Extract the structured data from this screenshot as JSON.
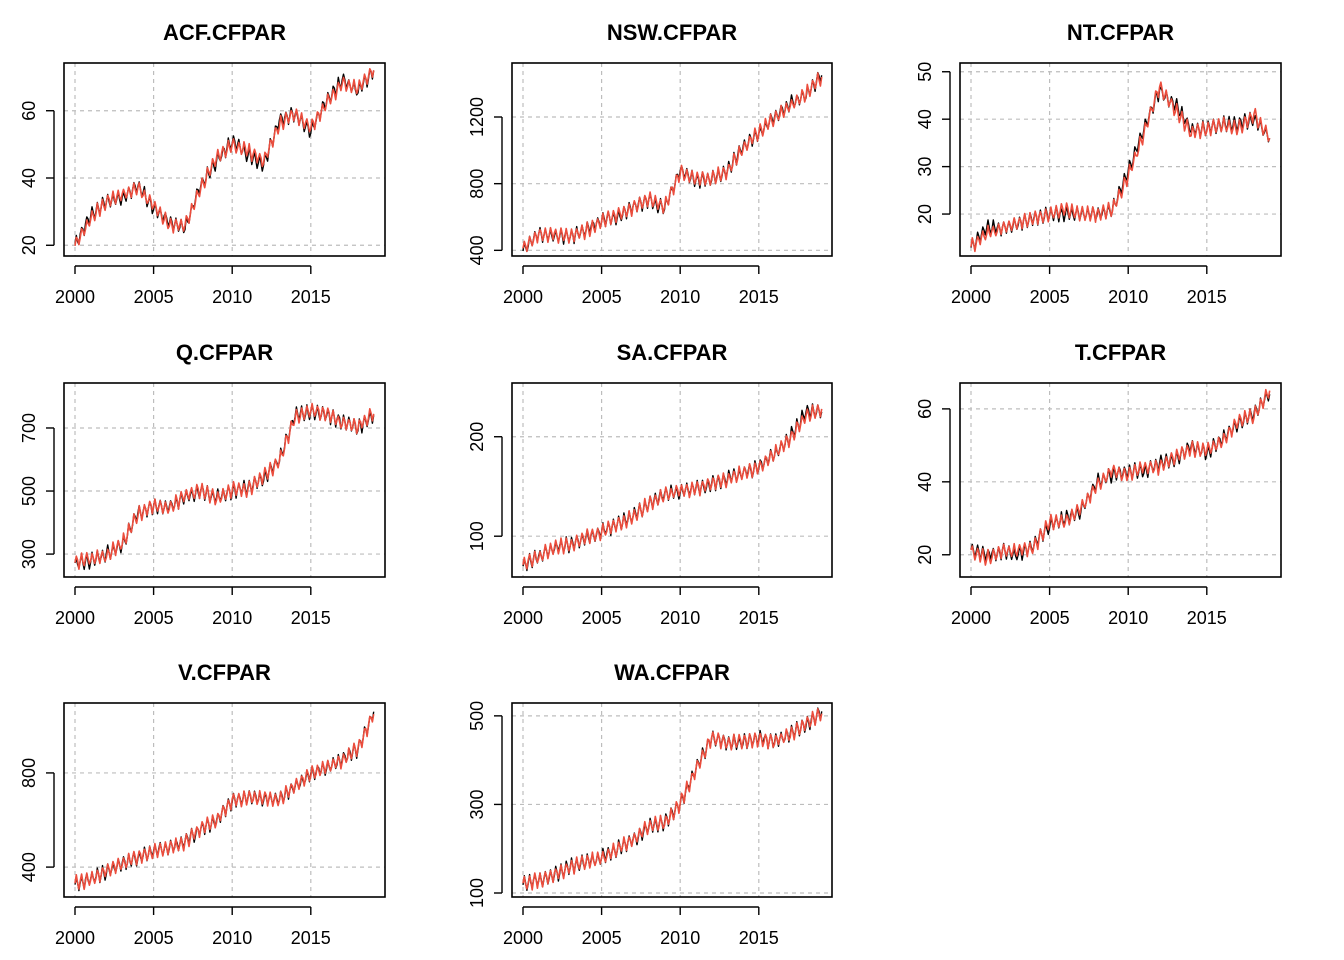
{
  "colors": {
    "actual": "#000000",
    "fitted": "#ec4d3d",
    "grid": "#bdbdbd"
  },
  "chart_data": [
    {
      "type": "line",
      "title": "ACF.CFPAR",
      "xlabel": "",
      "ylabel": "",
      "xlim": [
        2000,
        2019
      ],
      "ylim": [
        18,
        73
      ],
      "grid": true,
      "xticks": [
        2000,
        2005,
        2010,
        2015
      ],
      "yticks": [
        20,
        40,
        60
      ],
      "series": [
        {
          "x": [
            2000,
            2001,
            2002,
            2003,
            2004,
            2005,
            2006,
            2007,
            2008,
            2009,
            2010,
            2011,
            2012,
            2013,
            2014,
            2015,
            2016,
            2017,
            2018,
            2019
          ],
          "values": [
            20,
            29,
            33,
            34,
            38,
            31,
            27,
            25,
            38,
            45,
            51,
            47,
            44,
            57,
            59,
            54,
            63,
            69,
            66,
            72
          ]
        },
        {
          "x": [
            2000,
            2001,
            2002,
            2003,
            2004,
            2005,
            2006,
            2007,
            2008,
            2009,
            2010,
            2011,
            2012,
            2013,
            2014,
            2015,
            2016,
            2017,
            2018,
            2019
          ],
          "values": [
            20,
            28,
            33,
            35,
            37,
            32,
            26,
            26,
            37,
            46,
            50,
            48,
            45,
            56,
            59,
            55,
            62,
            68,
            67,
            72
          ]
        }
      ]
    },
    {
      "type": "line",
      "title": "NSW.CFPAR",
      "xlabel": "",
      "ylabel": "",
      "xlim": [
        2000,
        2019
      ],
      "ylim": [
        390,
        1500
      ],
      "grid": true,
      "xticks": [
        2000,
        2005,
        2010,
        2015
      ],
      "yticks": [
        400,
        800,
        1200
      ],
      "series": [
        {
          "x": [
            2000,
            2001,
            2002,
            2003,
            2004,
            2005,
            2006,
            2007,
            2008,
            2009,
            2010,
            2011,
            2012,
            2013,
            2014,
            2015,
            2016,
            2017,
            2018,
            2019
          ],
          "values": [
            400,
            500,
            490,
            480,
            520,
            580,
            600,
            660,
            700,
            650,
            880,
            820,
            830,
            880,
            1020,
            1100,
            1200,
            1280,
            1330,
            1450
          ]
        },
        {
          "x": [
            2000,
            2001,
            2002,
            2003,
            2004,
            2005,
            2006,
            2007,
            2008,
            2009,
            2010,
            2011,
            2012,
            2013,
            2014,
            2015,
            2016,
            2017,
            2018,
            2019
          ],
          "values": [
            405,
            495,
            495,
            485,
            515,
            575,
            610,
            655,
            705,
            660,
            870,
            825,
            835,
            875,
            1010,
            1110,
            1195,
            1270,
            1340,
            1440
          ]
        }
      ]
    },
    {
      "type": "line",
      "title": "NT.CFPAR",
      "xlabel": "",
      "ylabel": "",
      "xlim": [
        2000,
        2019
      ],
      "ylim": [
        12,
        51
      ],
      "grid": true,
      "xticks": [
        2000,
        2005,
        2010,
        2015
      ],
      "yticks": [
        20,
        30,
        40,
        50
      ],
      "series": [
        {
          "x": [
            2000,
            2001,
            2002,
            2003,
            2004,
            2005,
            2006,
            2007,
            2008,
            2009,
            2010,
            2011,
            2012,
            2013,
            2014,
            2015,
            2016,
            2017,
            2018,
            2019
          ],
          "values": [
            13,
            17,
            17,
            18,
            19,
            20,
            20,
            20,
            20,
            21,
            29,
            38,
            46,
            43,
            38,
            38,
            39,
            39,
            40,
            36
          ]
        },
        {
          "x": [
            2000,
            2001,
            2002,
            2003,
            2004,
            2005,
            2006,
            2007,
            2008,
            2009,
            2010,
            2011,
            2012,
            2013,
            2014,
            2015,
            2016,
            2017,
            2018,
            2019
          ],
          "values": [
            13,
            16,
            17,
            18,
            19,
            20,
            21,
            20,
            20,
            21,
            28,
            37,
            47,
            42,
            37,
            38,
            39,
            38,
            41,
            36
          ]
        }
      ]
    },
    {
      "type": "line",
      "title": "Q.CFPAR",
      "xlabel": "",
      "ylabel": "",
      "xlim": [
        2000,
        2019
      ],
      "ylim": [
        240,
        830
      ],
      "grid": true,
      "xticks": [
        2000,
        2005,
        2010,
        2015
      ],
      "yticks": [
        300,
        500,
        700
      ],
      "series": [
        {
          "x": [
            2000,
            2001,
            2002,
            2003,
            2004,
            2005,
            2006,
            2007,
            2008,
            2009,
            2010,
            2011,
            2012,
            2013,
            2014,
            2015,
            2016,
            2017,
            2018,
            2019
          ],
          "values": [
            270,
            280,
            300,
            330,
            430,
            450,
            450,
            480,
            500,
            480,
            500,
            510,
            540,
            600,
            740,
            750,
            740,
            720,
            700,
            740
          ]
        },
        {
          "x": [
            2000,
            2001,
            2002,
            2003,
            2004,
            2005,
            2006,
            2007,
            2008,
            2009,
            2010,
            2011,
            2012,
            2013,
            2014,
            2015,
            2016,
            2017,
            2018,
            2019
          ],
          "values": [
            275,
            285,
            295,
            335,
            425,
            455,
            445,
            485,
            505,
            475,
            505,
            505,
            545,
            595,
            735,
            755,
            745,
            715,
            705,
            745
          ]
        }
      ]
    },
    {
      "type": "line",
      "title": "SA.CFPAR",
      "xlabel": "",
      "ylabel": "",
      "xlim": [
        2000,
        2019
      ],
      "ylim": [
        63,
        250
      ],
      "grid": true,
      "xticks": [
        2000,
        2005,
        2010,
        2015
      ],
      "yticks": [
        100,
        200
      ],
      "series": [
        {
          "x": [
            2000,
            2001,
            2002,
            2003,
            2004,
            2005,
            2006,
            2007,
            2008,
            2009,
            2010,
            2011,
            2012,
            2013,
            2014,
            2015,
            2016,
            2017,
            2018,
            2019
          ],
          "values": [
            70,
            80,
            88,
            92,
            98,
            105,
            112,
            120,
            132,
            142,
            145,
            148,
            152,
            158,
            163,
            170,
            182,
            200,
            225,
            225
          ]
        },
        {
          "x": [
            2000,
            2001,
            2002,
            2003,
            2004,
            2005,
            2006,
            2007,
            2008,
            2009,
            2010,
            2011,
            2012,
            2013,
            2014,
            2015,
            2016,
            2017,
            2018,
            2019
          ],
          "values": [
            72,
            79,
            89,
            91,
            99,
            104,
            113,
            119,
            133,
            141,
            146,
            147,
            153,
            157,
            164,
            169,
            183,
            198,
            222,
            228
          ]
        }
      ]
    },
    {
      "type": "line",
      "title": "T.CFPAR",
      "xlabel": "",
      "ylabel": "",
      "xlim": [
        2000,
        2019
      ],
      "ylim": [
        15,
        66
      ],
      "grid": true,
      "xticks": [
        2000,
        2005,
        2010,
        2015
      ],
      "yticks": [
        20,
        40,
        60
      ],
      "series": [
        {
          "x": [
            2000,
            2001,
            2002,
            2003,
            2004,
            2005,
            2006,
            2007,
            2008,
            2009,
            2010,
            2011,
            2012,
            2013,
            2014,
            2015,
            2016,
            2017,
            2018,
            2019
          ],
          "values": [
            21,
            20,
            21,
            20,
            23,
            28,
            30,
            32,
            40,
            42,
            43,
            43,
            45,
            46,
            50,
            48,
            52,
            56,
            59,
            64
          ]
        },
        {
          "x": [
            2000,
            2001,
            2002,
            2003,
            2004,
            2005,
            2006,
            2007,
            2008,
            2009,
            2010,
            2011,
            2012,
            2013,
            2014,
            2015,
            2016,
            2017,
            2018,
            2019
          ],
          "values": [
            21,
            19,
            21,
            21,
            22,
            29,
            29,
            33,
            39,
            43,
            42,
            44,
            44,
            47,
            49,
            49,
            51,
            57,
            58,
            65
          ]
        }
      ]
    },
    {
      "type": "line",
      "title": "V.CFPAR",
      "xlabel": "",
      "ylabel": "",
      "xlim": [
        2000,
        2019
      ],
      "ylim": [
        290,
        1080
      ],
      "grid": true,
      "xticks": [
        2000,
        2005,
        2010,
        2015
      ],
      "yticks": [
        400,
        800
      ],
      "series": [
        {
          "x": [
            2000,
            2001,
            2002,
            2003,
            2004,
            2005,
            2006,
            2007,
            2008,
            2009,
            2010,
            2011,
            2012,
            2013,
            2014,
            2015,
            2016,
            2017,
            2018,
            2019
          ],
          "values": [
            330,
            350,
            380,
            420,
            440,
            470,
            480,
            510,
            560,
            600,
            680,
            700,
            690,
            690,
            740,
            800,
            820,
            860,
            900,
            1060
          ]
        },
        {
          "x": [
            2000,
            2001,
            2002,
            2003,
            2004,
            2005,
            2006,
            2007,
            2008,
            2009,
            2010,
            2011,
            2012,
            2013,
            2014,
            2015,
            2016,
            2017,
            2018,
            2019
          ],
          "values": [
            335,
            345,
            385,
            415,
            445,
            465,
            485,
            505,
            565,
            595,
            685,
            695,
            695,
            685,
            745,
            795,
            825,
            855,
            905,
            1050
          ]
        }
      ]
    },
    {
      "type": "line",
      "title": "WA.CFPAR",
      "xlabel": "",
      "ylabel": "",
      "xlim": [
        2000,
        2019
      ],
      "ylim": [
        100,
        520
      ],
      "grid": true,
      "xticks": [
        2000,
        2005,
        2010,
        2015
      ],
      "yticks": [
        100,
        300,
        500
      ],
      "series": [
        {
          "x": [
            2000,
            2001,
            2002,
            2003,
            2004,
            2005,
            2006,
            2007,
            2008,
            2009,
            2010,
            2011,
            2012,
            2013,
            2014,
            2015,
            2016,
            2017,
            2018,
            2019
          ],
          "values": [
            120,
            130,
            140,
            160,
            170,
            180,
            200,
            220,
            250,
            260,
            300,
            380,
            450,
            440,
            440,
            450,
            440,
            460,
            480,
            510
          ]
        },
        {
          "x": [
            2000,
            2001,
            2002,
            2003,
            2004,
            2005,
            2006,
            2007,
            2008,
            2009,
            2010,
            2011,
            2012,
            2013,
            2014,
            2015,
            2016,
            2017,
            2018,
            2019
          ],
          "values": [
            122,
            128,
            142,
            158,
            172,
            178,
            202,
            218,
            252,
            258,
            302,
            378,
            452,
            438,
            442,
            448,
            442,
            458,
            482,
            505
          ]
        }
      ]
    }
  ]
}
